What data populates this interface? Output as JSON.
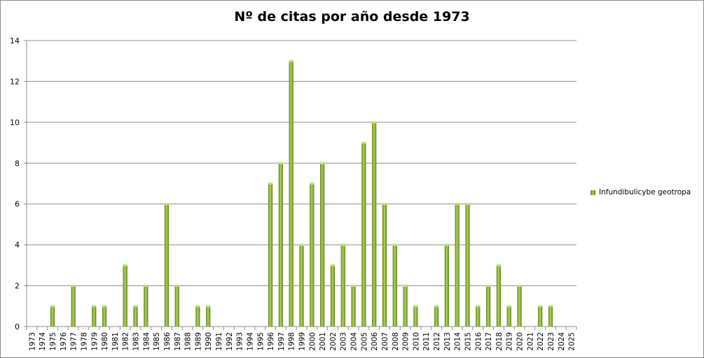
{
  "chart_data": {
    "type": "bar",
    "title": "Nº de citas por año desde 1973",
    "xlabel": "",
    "ylabel": "",
    "ylim": [
      0,
      14
    ],
    "y_ticks": [
      0,
      2,
      4,
      6,
      8,
      10,
      12,
      14
    ],
    "grid": true,
    "legend_position": "right",
    "categories": [
      "1973",
      "1974",
      "1975",
      "1976",
      "1977",
      "1978",
      "1979",
      "1980",
      "1981",
      "1982",
      "1983",
      "1984",
      "1985",
      "1986",
      "1987",
      "1988",
      "1989",
      "1990",
      "1991",
      "1992",
      "1993",
      "1994",
      "1995",
      "1996",
      "1997",
      "1998",
      "1999",
      "2000",
      "2001",
      "2002",
      "2003",
      "2004",
      "2005",
      "2006",
      "2007",
      "2008",
      "2009",
      "2010",
      "2011",
      "2012",
      "2013",
      "2014",
      "2015",
      "2016",
      "2017",
      "2018",
      "2019",
      "2020",
      "2021",
      "2022",
      "2023",
      "2024",
      "2025"
    ],
    "series": [
      {
        "name": "Infundibulicybe geotropa",
        "color": "#8db83a",
        "values": [
          0,
          0,
          1,
          0,
          2,
          0,
          1,
          1,
          0,
          3,
          1,
          2,
          0,
          6,
          2,
          0,
          1,
          1,
          0,
          0,
          0,
          0,
          0,
          7,
          8,
          13,
          4,
          7,
          8,
          3,
          4,
          2,
          9,
          10,
          6,
          4,
          2,
          1,
          0,
          1,
          4,
          6,
          6,
          1,
          2,
          3,
          1,
          2,
          0,
          1,
          1,
          0,
          0
        ]
      }
    ]
  }
}
